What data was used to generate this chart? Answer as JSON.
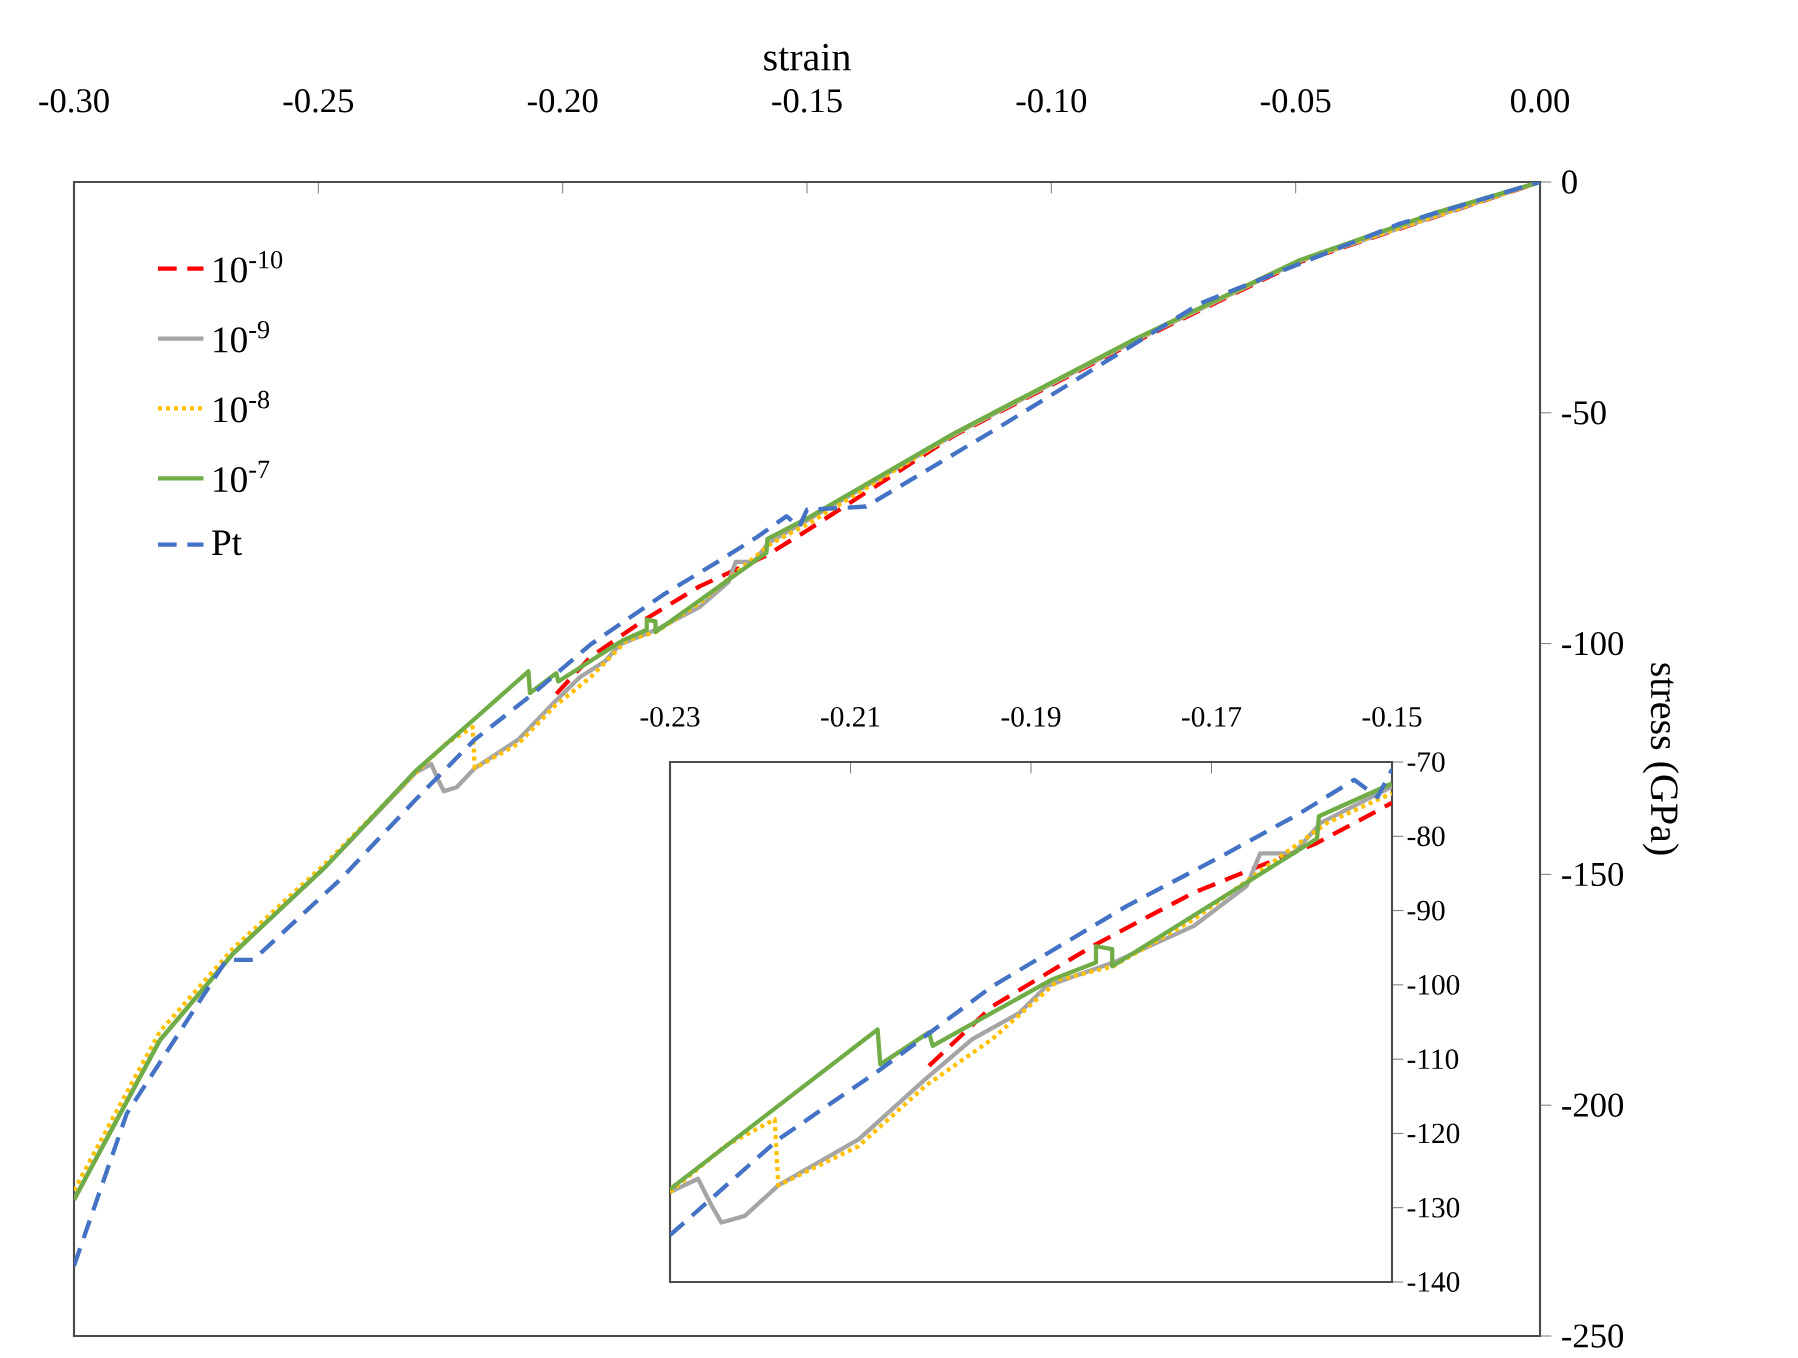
{
  "chart_data": [
    {
      "type": "line",
      "xlabel": "strain",
      "ylabel": "stress (GPa)",
      "xlim": [
        -0.3,
        0
      ],
      "ylim": [
        -250,
        0
      ],
      "xticks": [
        {
          "value": -0.3,
          "label": "-0.30"
        },
        {
          "value": -0.25,
          "label": "-0.25"
        },
        {
          "value": -0.2,
          "label": "-0.20"
        },
        {
          "value": -0.15,
          "label": "-0.15"
        },
        {
          "value": -0.1,
          "label": "-0.10"
        },
        {
          "value": -0.05,
          "label": "-0.05"
        },
        {
          "value": 0,
          "label": "0.00"
        }
      ],
      "yticks": [
        0,
        -50,
        -100,
        -150,
        -200,
        -250
      ],
      "legend": "top left",
      "series": [
        {
          "name": "10$^{-10}$",
          "color": "#ff0000",
          "line_style": "dashed",
          "x": [
            -0.2013,
            -0.1943,
            -0.1832,
            -0.172,
            -0.1583,
            -0.15,
            -0.12,
            -0.0832,
            -0.0491,
            0
          ],
          "values": [
            -110.9,
            -102.9,
            -94.8,
            -87.6,
            -80.9,
            -75.5,
            -55,
            -34.8,
            -17.3,
            0
          ]
        },
        {
          "name": "10$^{-9}$",
          "color": "#a5a5a5",
          "line_style": "solid",
          "x": [
            -0.3,
            -0.2919,
            -0.2824,
            -0.2674,
            -0.2484,
            -0.23,
            -0.2269,
            -0.2254,
            -0.2243,
            -0.2217,
            -0.218,
            -0.2091,
            -0.2017,
            -0.1965,
            -0.1913,
            -0.1883,
            -0.1809,
            -0.172,
            -0.1661,
            -0.1646,
            -0.1609,
            -0.1579,
            -0.15,
            -0.12,
            -0.0832,
            -0.0491,
            0
          ],
          "values": [
            -220.5,
            -204.5,
            -185.9,
            -167.1,
            -148.2,
            -127.9,
            -126.1,
            -129.7,
            -132,
            -131.1,
            -127,
            -120.8,
            -112.7,
            -107.3,
            -103.8,
            -100.2,
            -97,
            -92.1,
            -86.7,
            -82.3,
            -82.3,
            -78.2,
            -73.3,
            -54.8,
            -34.5,
            -17.1,
            0
          ]
        },
        {
          "name": "10$^{-8}$",
          "color": "#ffc000",
          "line_style": "dotted",
          "x": [
            -0.3,
            -0.2919,
            -0.2824,
            -0.2674,
            -0.2484,
            -0.23,
            -0.2239,
            -0.2184,
            -0.218,
            -0.2091,
            -0.2017,
            -0.1943,
            -0.1869,
            -0.1809,
            -0.172,
            -0.1572,
            -0.15,
            -0.12,
            -0.0832,
            -0.0491,
            0
          ],
          "values": [
            -218.5,
            -202.5,
            -184,
            -166,
            -147.5,
            -127.9,
            -121.7,
            -118.1,
            -127,
            -121.7,
            -113.6,
            -107.3,
            -99.3,
            -97.5,
            -91.2,
            -78.2,
            -74.2,
            -54.6,
            -34.3,
            -17,
            0
          ]
        },
        {
          "name": "10$^{-7}$",
          "color": "#70ad47",
          "line_style": "solid",
          "x": [
            -0.3,
            -0.2919,
            -0.2824,
            -0.2674,
            -0.2484,
            -0.23,
            -0.207,
            -0.2067,
            -0.2013,
            -0.2009,
            -0.1877,
            -0.1828,
            -0.1828,
            -0.181,
            -0.181,
            -0.1583,
            -0.1581,
            -0.15,
            -0.12,
            -0.0832,
            -0.0491,
            -0.0218,
            0
          ],
          "values": [
            -220.5,
            -204.5,
            -185.9,
            -167.1,
            -148.2,
            -127.5,
            -106,
            -110.7,
            -106.4,
            -108.2,
            -99.3,
            -97,
            -94.8,
            -95.2,
            -97.5,
            -80.3,
            -77.3,
            -72.9,
            -54.5,
            -34.2,
            -16.9,
            -6.8,
            0
          ]
        },
        {
          "name": "Pt",
          "color": "#4472c4",
          "line_style": "dashed",
          "x": [
            -0.3,
            -0.2892,
            -0.2688,
            -0.2633,
            -0.2456,
            -0.23,
            -0.218,
            -0.2067,
            -0.1943,
            -0.1794,
            -0.1683,
            -0.1602,
            -0.1542,
            -0.1516,
            -0.15,
            -0.1379,
            -0.1105,
            -0.0695,
            -0.0286,
            0
          ],
          "values": [
            -234.8,
            -201.8,
            -168.5,
            -168.5,
            -151.2,
            -133.7,
            -120.8,
            -111.4,
            -100.2,
            -89.4,
            -82.3,
            -76.9,
            -72.4,
            -74.7,
            -71,
            -70.3,
            -53,
            -26.3,
            -9,
            0
          ]
        }
      ]
    },
    {
      "type": "line",
      "xlim": [
        -0.23,
        -0.15
      ],
      "ylim": [
        -140,
        -70
      ],
      "xticks": [
        {
          "value": -0.23,
          "label": "-0.23"
        },
        {
          "value": -0.21,
          "label": "-0.21"
        },
        {
          "value": -0.19,
          "label": "-0.19"
        },
        {
          "value": -0.17,
          "label": "-0.17"
        },
        {
          "value": -0.15,
          "label": "-0.15"
        }
      ],
      "yticks": [
        -70,
        -80,
        -90,
        -100,
        -110,
        -120,
        -130,
        -140
      ],
      "series": [
        {
          "color": "#ff0000",
          "line_style": "dashed",
          "x": [
            -0.2013,
            -0.1943,
            -0.1832,
            -0.172,
            -0.1583,
            -0.15
          ],
          "values": [
            -110.9,
            -102.9,
            -94.8,
            -87.6,
            -80.9,
            -75.5
          ]
        },
        {
          "color": "#a5a5a5",
          "line_style": "solid",
          "x": [
            -0.23,
            -0.2269,
            -0.2254,
            -0.2243,
            -0.2217,
            -0.218,
            -0.2091,
            -0.2017,
            -0.1965,
            -0.1913,
            -0.1883,
            -0.1809,
            -0.172,
            -0.1661,
            -0.1646,
            -0.1609,
            -0.1579,
            -0.15
          ],
          "values": [
            -127.9,
            -126.1,
            -129.7,
            -132,
            -131.1,
            -127,
            -120.8,
            -112.7,
            -107.3,
            -103.8,
            -100.2,
            -97,
            -92.1,
            -86.7,
            -82.3,
            -82.3,
            -78.2,
            -73.3
          ]
        },
        {
          "color": "#ffc000",
          "line_style": "dotted",
          "x": [
            -0.23,
            -0.2239,
            -0.2184,
            -0.218,
            -0.2091,
            -0.2017,
            -0.1943,
            -0.1869,
            -0.1809,
            -0.172,
            -0.1572,
            -0.15
          ],
          "values": [
            -127.9,
            -121.7,
            -118.1,
            -127,
            -121.7,
            -113.6,
            -107.3,
            -99.3,
            -97.5,
            -91.2,
            -78.2,
            -74.2
          ]
        },
        {
          "color": "#70ad47",
          "line_style": "solid",
          "x": [
            -0.23,
            -0.207,
            -0.2067,
            -0.2013,
            -0.2009,
            -0.1877,
            -0.1828,
            -0.1828,
            -0.181,
            -0.181,
            -0.1583,
            -0.1581,
            -0.15
          ],
          "values": [
            -127.5,
            -106,
            -110.7,
            -106.4,
            -108.2,
            -99.3,
            -97,
            -94.8,
            -95.2,
            -97.5,
            -80.3,
            -77.3,
            -72.9
          ]
        },
        {
          "color": "#4472c4",
          "line_style": "dashed",
          "x": [
            -0.23,
            -0.218,
            -0.2067,
            -0.1943,
            -0.1794,
            -0.1683,
            -0.1602,
            -0.1542,
            -0.1516,
            -0.15
          ],
          "values": [
            -133.7,
            -120.8,
            -111.4,
            -100.2,
            -89.4,
            -82.3,
            -76.9,
            -72.4,
            -74.7,
            -71
          ]
        }
      ]
    }
  ]
}
